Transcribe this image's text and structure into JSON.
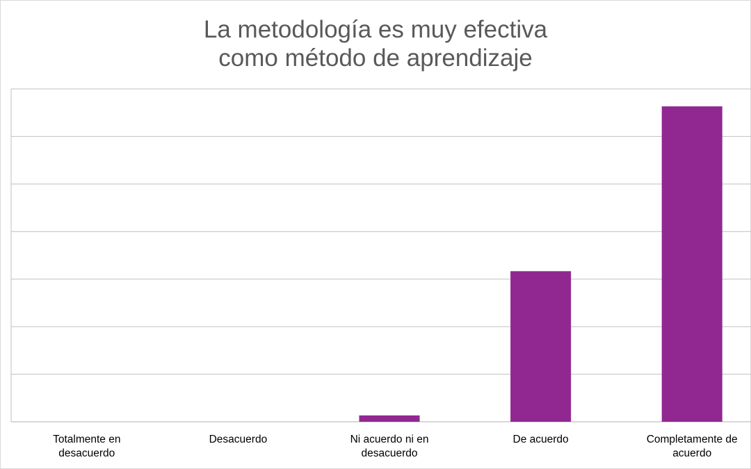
{
  "chart_data": {
    "type": "bar",
    "title_lines": [
      "La metodología es muy efectiva",
      "como método de aprendizaje"
    ],
    "categories": [
      [
        "Totalmente en",
        "desacuerdo"
      ],
      [
        "Desacuerdo"
      ],
      [
        "Ni acuerdo ni en",
        "desacuerdo"
      ],
      [
        "De acuerdo"
      ],
      [
        "Completamente de",
        "acuerdo"
      ]
    ],
    "values": [
      0,
      0,
      0.4,
      9.5,
      19.9
    ],
    "ylim": [
      0,
      21
    ],
    "grid_step": 3,
    "grid": true,
    "legend": "none",
    "bar_color": "#912891",
    "grid_color": "#bfbfbf"
  }
}
